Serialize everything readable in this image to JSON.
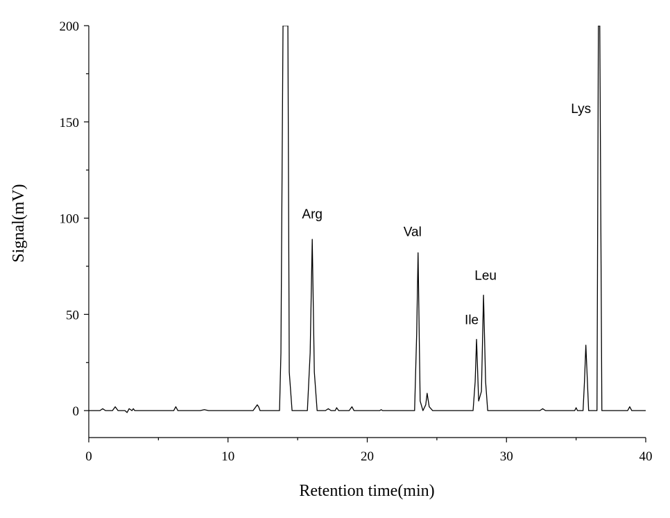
{
  "chart_data": {
    "type": "line",
    "title": "",
    "xlabel": "Retention time(min)",
    "ylabel": "Signal(mV)",
    "xlim": [
      0,
      40
    ],
    "ylim": [
      -14,
      200
    ],
    "xticks": [
      0,
      10,
      20,
      30,
      40
    ],
    "yticks": [
      0,
      50,
      100,
      150,
      200
    ],
    "grid": false,
    "legend": "none",
    "line_color": "#000000",
    "series": [
      {
        "x": [
          0.0,
          0.8,
          1.0,
          1.2,
          1.7,
          1.9,
          2.1,
          2.6,
          2.75,
          2.9,
          3.1,
          3.2,
          3.3,
          5.0,
          6.1,
          6.25,
          6.4,
          8.0,
          8.3,
          8.6,
          9.5,
          11.8,
          12.1,
          12.2,
          12.3,
          13.0,
          13.7,
          13.8,
          13.95,
          14.0,
          14.2,
          14.3,
          14.4,
          14.6,
          15.0,
          15.7,
          15.9,
          16.05,
          16.2,
          16.4,
          17.0,
          17.2,
          17.4,
          17.7,
          17.8,
          17.95,
          18.7,
          18.9,
          19.05,
          20.9,
          21.0,
          21.1,
          23.4,
          23.55,
          23.65,
          23.8,
          24.0,
          24.2,
          24.3,
          24.45,
          24.7,
          27.6,
          27.75,
          27.85,
          28.0,
          28.2,
          28.35,
          28.5,
          28.65,
          28.9,
          32.4,
          32.6,
          32.8,
          34.9,
          35.0,
          35.1,
          35.5,
          35.6,
          35.7,
          35.9,
          36.2,
          36.5,
          36.6,
          36.7,
          36.85,
          37.5,
          38.7,
          38.85,
          39.0,
          40.0
        ],
        "y": [
          0,
          0,
          1,
          0,
          0,
          2,
          0,
          0,
          -1,
          1,
          0,
          1,
          0,
          0,
          0,
          2,
          0,
          0,
          0.5,
          0,
          0,
          0,
          3,
          2,
          0,
          0,
          0,
          30,
          200,
          200,
          200,
          200,
          20,
          0,
          0,
          0,
          30,
          89,
          20,
          0,
          0,
          1,
          0,
          0,
          1.5,
          0,
          0,
          2,
          0,
          0,
          0.5,
          0,
          0,
          40,
          82,
          5,
          0,
          3,
          9,
          2,
          0,
          0,
          15,
          37,
          5,
          10,
          60,
          15,
          0,
          0,
          0,
          1,
          0,
          0,
          1.5,
          0,
          0,
          15,
          34,
          0,
          0,
          0,
          200,
          200,
          0,
          0,
          0,
          2,
          0,
          0
        ]
      }
    ],
    "annotations": [
      {
        "text": "Arg",
        "x": 16.05,
        "y": 89
      },
      {
        "text": "Val",
        "x": 23.65,
        "y": 82
      },
      {
        "text": "Ile",
        "x": 27.85,
        "y": 37
      },
      {
        "text": "Leu",
        "x": 28.5,
        "y": 60
      },
      {
        "text": "Lys",
        "x": 36.65,
        "y": 200
      }
    ]
  }
}
